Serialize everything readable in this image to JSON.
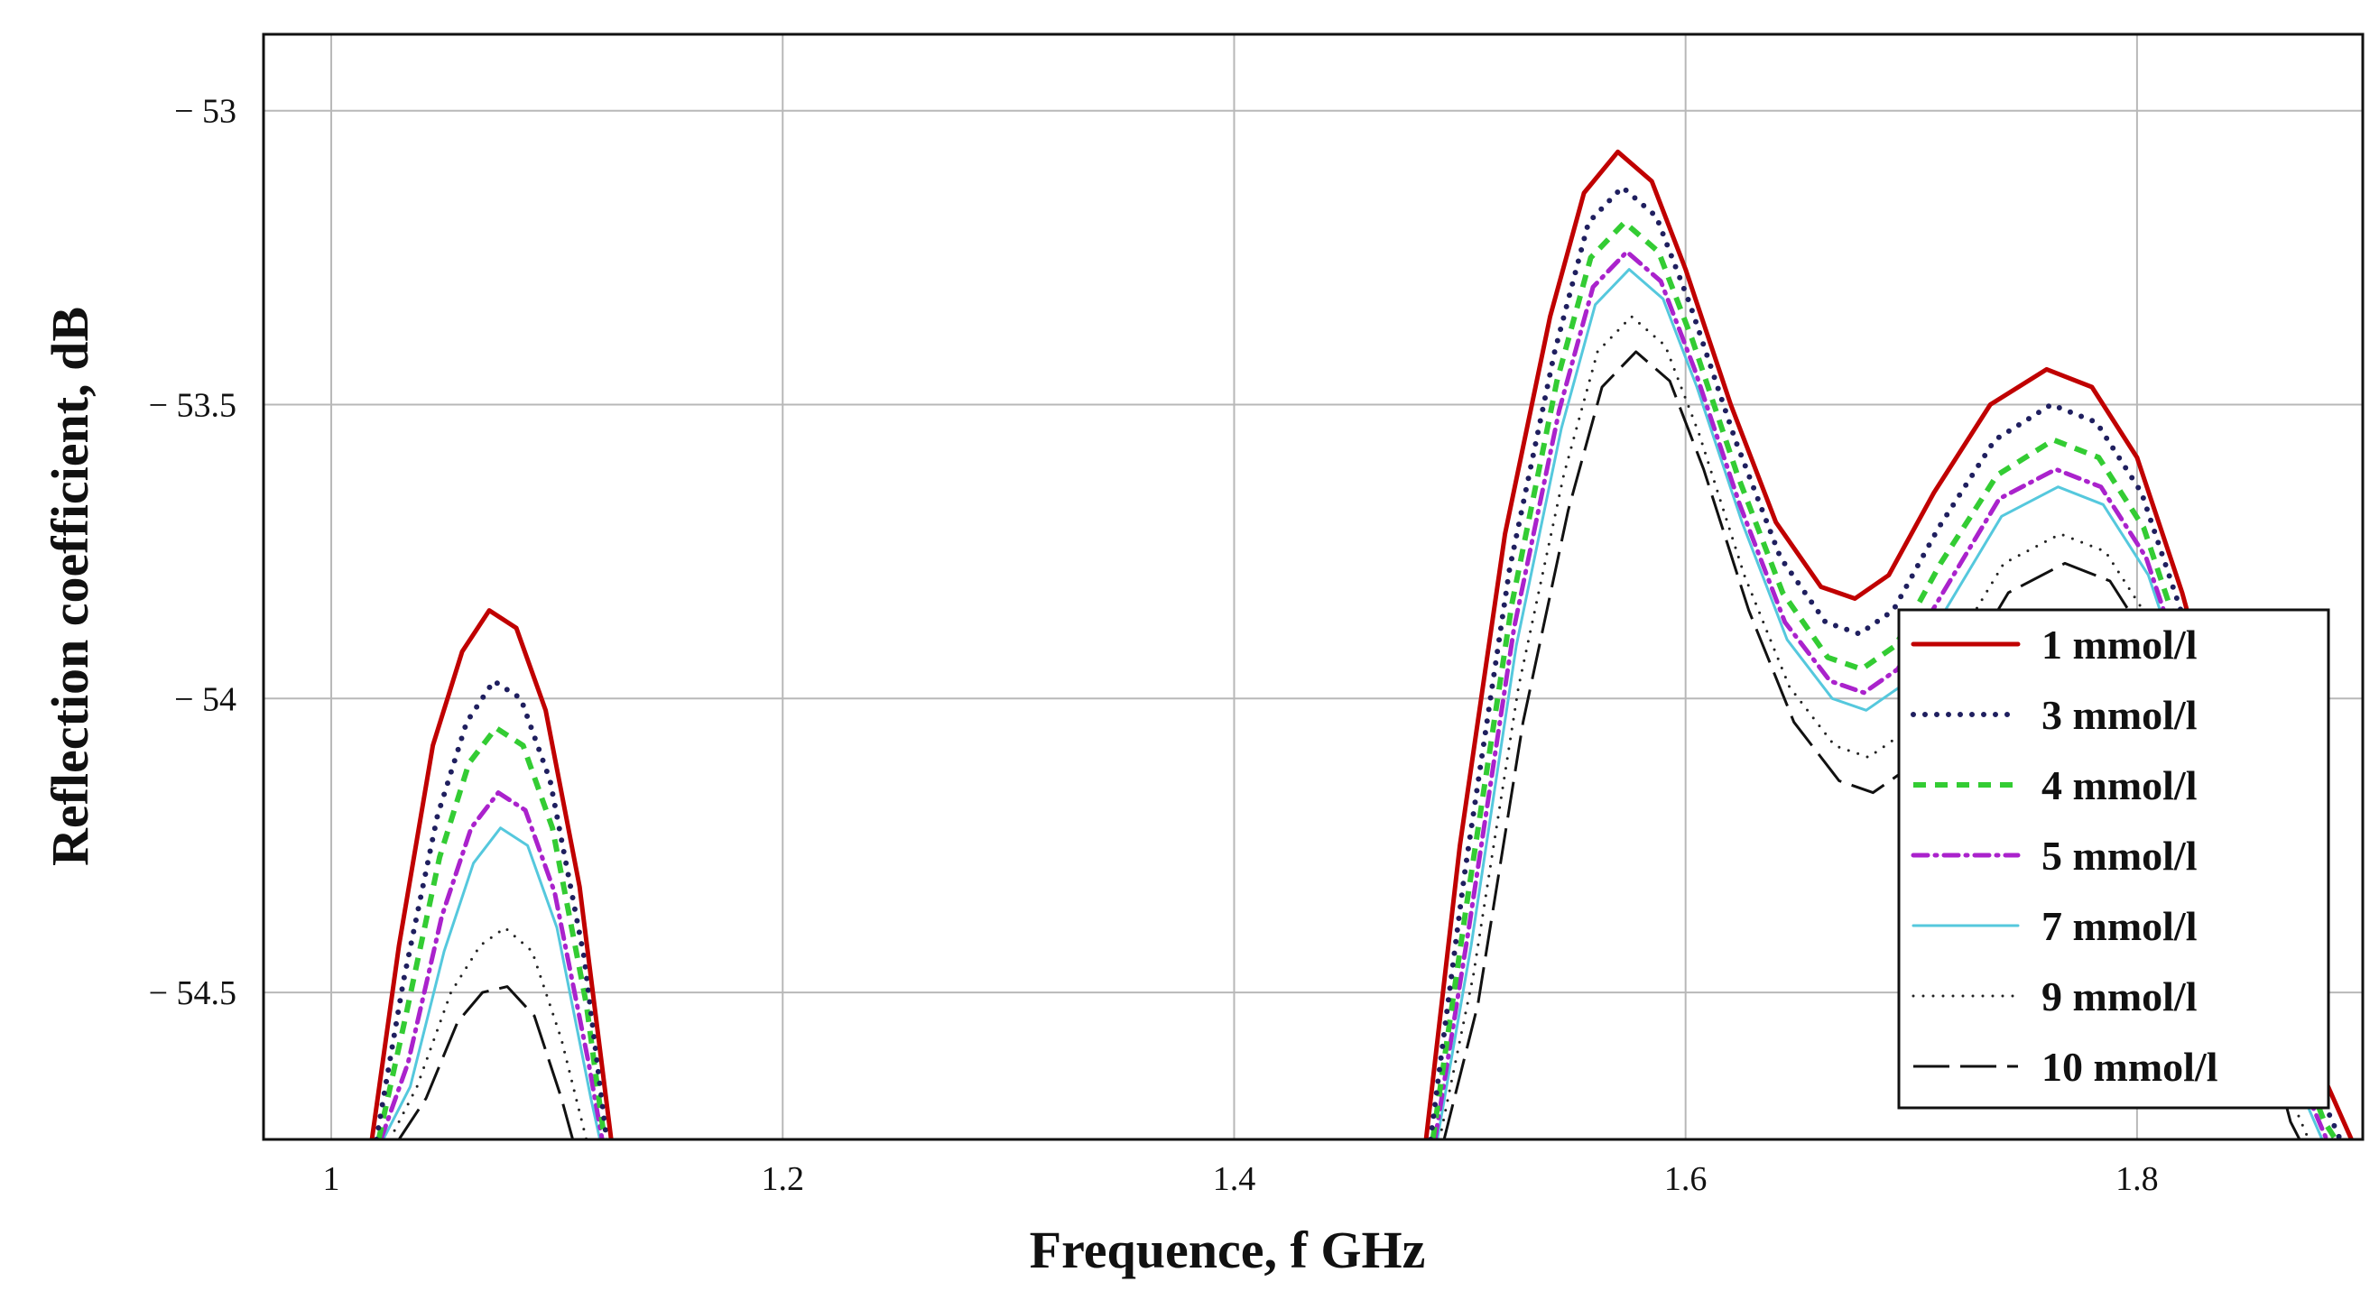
{
  "chart_data": {
    "type": "line",
    "title": "",
    "xlabel": "Frequence, f GHz",
    "ylabel": "Reflection coefficient, dB",
    "xlim": [
      0.97,
      1.9
    ],
    "ylim": [
      -54.75,
      -52.87
    ],
    "x_ticks": [
      1,
      1.2,
      1.4,
      1.6,
      1.8
    ],
    "x_tick_labels": [
      "1",
      "1.2",
      "1.4",
      "1.6",
      "1.8"
    ],
    "y_ticks": [
      -53,
      -53.5,
      -54,
      -54.5
    ],
    "y_tick_labels": [
      "− 53",
      "− 53.5",
      "− 54",
      "− 54.5"
    ],
    "grid": true,
    "legend_position": "right",
    "series": [
      {
        "name": "1  mmol/l",
        "color": "#c00000",
        "style": "solid",
        "points": [
          [
            1.018,
            -54.75
          ],
          [
            1.03,
            -54.42
          ],
          [
            1.045,
            -54.08
          ],
          [
            1.058,
            -53.92
          ],
          [
            1.07,
            -53.85
          ],
          [
            1.082,
            -53.88
          ],
          [
            1.095,
            -54.02
          ],
          [
            1.11,
            -54.32
          ],
          [
            1.124,
            -54.75
          ],
          [
            1.485,
            -54.75
          ],
          [
            1.5,
            -54.25
          ],
          [
            1.52,
            -53.72
          ],
          [
            1.54,
            -53.35
          ],
          [
            1.555,
            -53.14
          ],
          [
            1.57,
            -53.07
          ],
          [
            1.585,
            -53.12
          ],
          [
            1.6,
            -53.27
          ],
          [
            1.62,
            -53.5
          ],
          [
            1.64,
            -53.7
          ],
          [
            1.66,
            -53.81
          ],
          [
            1.675,
            -53.83
          ],
          [
            1.69,
            -53.79
          ],
          [
            1.71,
            -53.65
          ],
          [
            1.735,
            -53.5
          ],
          [
            1.76,
            -53.44
          ],
          [
            1.78,
            -53.47
          ],
          [
            1.8,
            -53.59
          ],
          [
            1.82,
            -53.82
          ],
          [
            1.84,
            -54.1
          ],
          [
            1.86,
            -54.4
          ],
          [
            1.88,
            -54.62
          ],
          [
            1.895,
            -54.75
          ]
        ]
      },
      {
        "name": "3  mmol/l",
        "color": "#1f1f5f",
        "style": "dotted",
        "points": [
          [
            1.02,
            -54.75
          ],
          [
            1.032,
            -54.48
          ],
          [
            1.047,
            -54.2
          ],
          [
            1.06,
            -54.04
          ],
          [
            1.072,
            -53.97
          ],
          [
            1.084,
            -54.0
          ],
          [
            1.097,
            -54.14
          ],
          [
            1.112,
            -54.44
          ],
          [
            1.122,
            -54.75
          ],
          [
            1.487,
            -54.75
          ],
          [
            1.502,
            -54.3
          ],
          [
            1.522,
            -53.78
          ],
          [
            1.542,
            -53.41
          ],
          [
            1.557,
            -53.19
          ],
          [
            1.572,
            -53.13
          ],
          [
            1.587,
            -53.18
          ],
          [
            1.602,
            -53.33
          ],
          [
            1.622,
            -53.56
          ],
          [
            1.642,
            -53.76
          ],
          [
            1.662,
            -53.87
          ],
          [
            1.677,
            -53.89
          ],
          [
            1.692,
            -53.85
          ],
          [
            1.712,
            -53.71
          ],
          [
            1.737,
            -53.56
          ],
          [
            1.762,
            -53.5
          ],
          [
            1.782,
            -53.53
          ],
          [
            1.802,
            -53.65
          ],
          [
            1.822,
            -53.88
          ],
          [
            1.842,
            -54.16
          ],
          [
            1.862,
            -54.46
          ],
          [
            1.882,
            -54.68
          ],
          [
            1.89,
            -54.75
          ]
        ]
      },
      {
        "name": "4  mmol/l",
        "color": "#33cc33",
        "style": "dashed",
        "points": [
          [
            1.021,
            -54.75
          ],
          [
            1.033,
            -54.54
          ],
          [
            1.048,
            -54.27
          ],
          [
            1.061,
            -54.11
          ],
          [
            1.073,
            -54.05
          ],
          [
            1.085,
            -54.08
          ],
          [
            1.098,
            -54.22
          ],
          [
            1.113,
            -54.52
          ],
          [
            1.121,
            -54.75
          ],
          [
            1.488,
            -54.75
          ],
          [
            1.503,
            -54.35
          ],
          [
            1.523,
            -53.84
          ],
          [
            1.543,
            -53.46
          ],
          [
            1.558,
            -53.25
          ],
          [
            1.573,
            -53.19
          ],
          [
            1.588,
            -53.24
          ],
          [
            1.603,
            -53.39
          ],
          [
            1.623,
            -53.62
          ],
          [
            1.643,
            -53.82
          ],
          [
            1.663,
            -53.93
          ],
          [
            1.678,
            -53.95
          ],
          [
            1.693,
            -53.91
          ],
          [
            1.713,
            -53.77
          ],
          [
            1.738,
            -53.62
          ],
          [
            1.763,
            -53.56
          ],
          [
            1.783,
            -53.59
          ],
          [
            1.803,
            -53.71
          ],
          [
            1.823,
            -53.94
          ],
          [
            1.843,
            -54.22
          ],
          [
            1.863,
            -54.52
          ],
          [
            1.883,
            -54.72
          ],
          [
            1.888,
            -54.75
          ]
        ]
      },
      {
        "name": "5  mmol/l",
        "color": "#aa22cc",
        "style": "dashdot",
        "points": [
          [
            1.022,
            -54.75
          ],
          [
            1.034,
            -54.62
          ],
          [
            1.049,
            -54.37
          ],
          [
            1.062,
            -54.22
          ],
          [
            1.074,
            -54.16
          ],
          [
            1.086,
            -54.19
          ],
          [
            1.099,
            -54.33
          ],
          [
            1.114,
            -54.62
          ],
          [
            1.12,
            -54.75
          ],
          [
            1.489,
            -54.75
          ],
          [
            1.504,
            -54.39
          ],
          [
            1.524,
            -53.88
          ],
          [
            1.544,
            -53.51
          ],
          [
            1.559,
            -53.3
          ],
          [
            1.574,
            -53.24
          ],
          [
            1.589,
            -53.29
          ],
          [
            1.604,
            -53.44
          ],
          [
            1.624,
            -53.67
          ],
          [
            1.644,
            -53.87
          ],
          [
            1.664,
            -53.97
          ],
          [
            1.679,
            -53.99
          ],
          [
            1.694,
            -53.95
          ],
          [
            1.714,
            -53.82
          ],
          [
            1.739,
            -53.66
          ],
          [
            1.764,
            -53.61
          ],
          [
            1.784,
            -53.64
          ],
          [
            1.804,
            -53.76
          ],
          [
            1.824,
            -53.99
          ],
          [
            1.844,
            -54.27
          ],
          [
            1.864,
            -54.57
          ],
          [
            1.884,
            -54.75
          ]
        ]
      },
      {
        "name": "7  mmol/l",
        "color": "#55c8dd",
        "style": "solid-thin",
        "points": [
          [
            1.023,
            -54.75
          ],
          [
            1.035,
            -54.66
          ],
          [
            1.05,
            -54.43
          ],
          [
            1.063,
            -54.28
          ],
          [
            1.075,
            -54.22
          ],
          [
            1.087,
            -54.25
          ],
          [
            1.1,
            -54.39
          ],
          [
            1.115,
            -54.68
          ],
          [
            1.119,
            -54.75
          ],
          [
            1.49,
            -54.75
          ],
          [
            1.505,
            -54.42
          ],
          [
            1.525,
            -53.91
          ],
          [
            1.545,
            -53.54
          ],
          [
            1.56,
            -53.33
          ],
          [
            1.575,
            -53.27
          ],
          [
            1.59,
            -53.32
          ],
          [
            1.605,
            -53.47
          ],
          [
            1.625,
            -53.7
          ],
          [
            1.645,
            -53.9
          ],
          [
            1.665,
            -54.0
          ],
          [
            1.68,
            -54.02
          ],
          [
            1.695,
            -53.98
          ],
          [
            1.715,
            -53.85
          ],
          [
            1.74,
            -53.69
          ],
          [
            1.765,
            -53.64
          ],
          [
            1.785,
            -53.67
          ],
          [
            1.805,
            -53.79
          ],
          [
            1.825,
            -54.02
          ],
          [
            1.845,
            -54.3
          ],
          [
            1.865,
            -54.6
          ],
          [
            1.882,
            -54.75
          ]
        ]
      },
      {
        "name": "9  mmol/l",
        "color": "#222222",
        "style": "fine-dotted",
        "points": [
          [
            1.026,
            -54.75
          ],
          [
            1.038,
            -54.66
          ],
          [
            1.053,
            -54.5
          ],
          [
            1.066,
            -54.42
          ],
          [
            1.077,
            -54.39
          ],
          [
            1.089,
            -54.43
          ],
          [
            1.102,
            -54.58
          ],
          [
            1.113,
            -54.75
          ],
          [
            1.491,
            -54.75
          ],
          [
            1.506,
            -54.47
          ],
          [
            1.526,
            -53.98
          ],
          [
            1.546,
            -53.62
          ],
          [
            1.561,
            -53.41
          ],
          [
            1.576,
            -53.35
          ],
          [
            1.591,
            -53.4
          ],
          [
            1.606,
            -53.55
          ],
          [
            1.626,
            -53.79
          ],
          [
            1.646,
            -53.98
          ],
          [
            1.666,
            -54.08
          ],
          [
            1.681,
            -54.1
          ],
          [
            1.696,
            -54.06
          ],
          [
            1.716,
            -53.93
          ],
          [
            1.741,
            -53.77
          ],
          [
            1.766,
            -53.72
          ],
          [
            1.786,
            -53.75
          ],
          [
            1.806,
            -53.87
          ],
          [
            1.826,
            -54.1
          ],
          [
            1.846,
            -54.38
          ],
          [
            1.866,
            -54.66
          ],
          [
            1.876,
            -54.75
          ]
        ]
      },
      {
        "name": "10  mmol/l",
        "color": "#111111",
        "style": "longdash",
        "points": [
          [
            1.03,
            -54.75
          ],
          [
            1.042,
            -54.68
          ],
          [
            1.056,
            -54.55
          ],
          [
            1.067,
            -54.5
          ],
          [
            1.078,
            -54.49
          ],
          [
            1.09,
            -54.54
          ],
          [
            1.102,
            -54.68
          ],
          [
            1.107,
            -54.75
          ],
          [
            1.493,
            -54.75
          ],
          [
            1.508,
            -54.52
          ],
          [
            1.528,
            -54.04
          ],
          [
            1.548,
            -53.68
          ],
          [
            1.563,
            -53.47
          ],
          [
            1.578,
            -53.41
          ],
          [
            1.593,
            -53.46
          ],
          [
            1.608,
            -53.61
          ],
          [
            1.628,
            -53.85
          ],
          [
            1.648,
            -54.04
          ],
          [
            1.668,
            -54.14
          ],
          [
            1.683,
            -54.16
          ],
          [
            1.698,
            -54.12
          ],
          [
            1.718,
            -53.98
          ],
          [
            1.743,
            -53.82
          ],
          [
            1.768,
            -53.77
          ],
          [
            1.788,
            -53.8
          ],
          [
            1.808,
            -53.92
          ],
          [
            1.828,
            -54.15
          ],
          [
            1.848,
            -54.43
          ],
          [
            1.868,
            -54.72
          ],
          [
            1.872,
            -54.75
          ]
        ]
      }
    ]
  }
}
